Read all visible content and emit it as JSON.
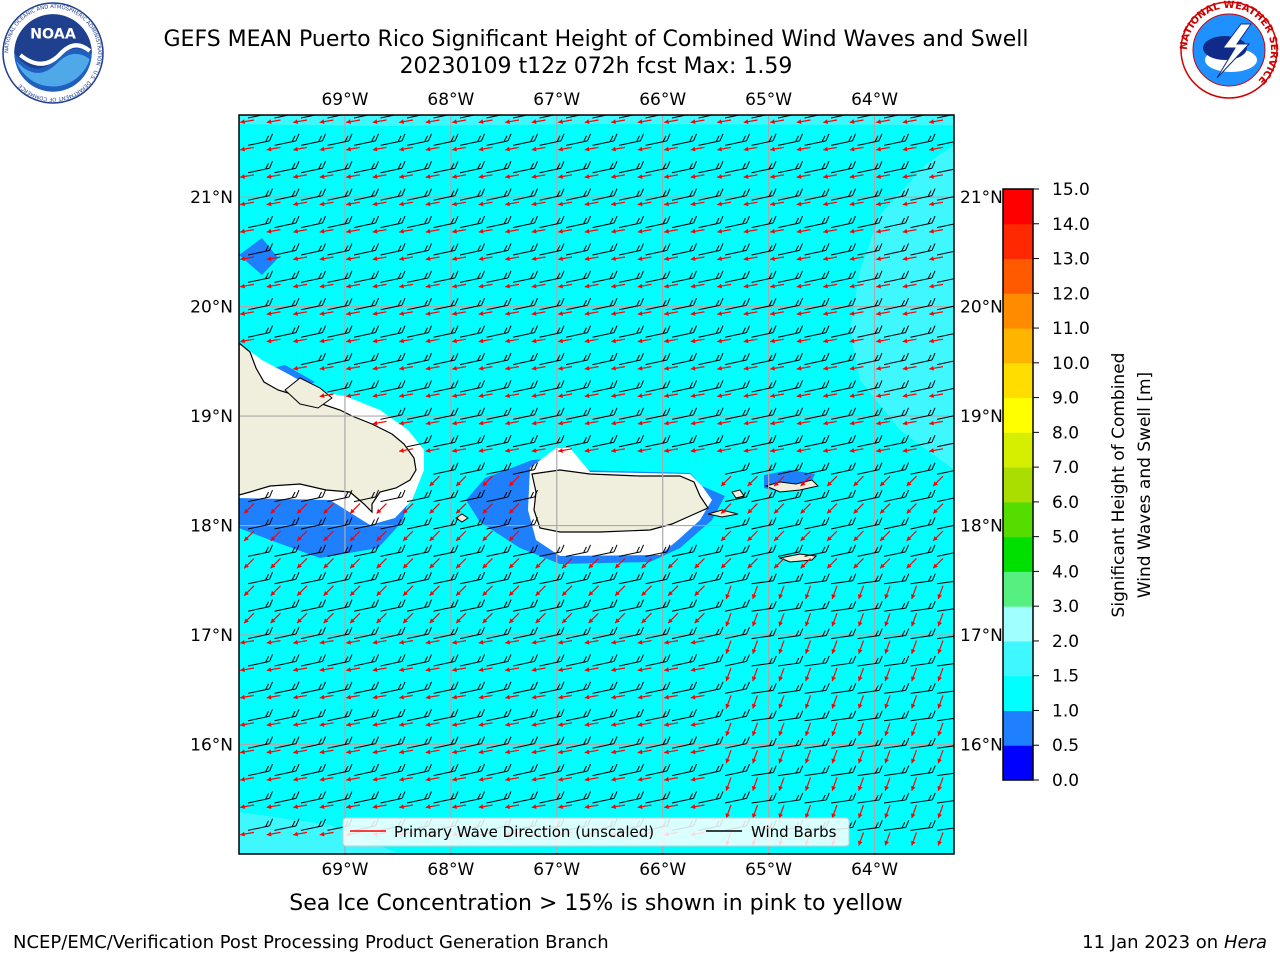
{
  "header": {
    "title_line1": "GEFS MEAN Puerto Rico Significant Height of Combined Wind Waves and Swell",
    "title_line2": "20230109 t12z 072h fcst   Max: 1.59"
  },
  "logos": {
    "left": {
      "name": "noaa-logo",
      "text": "NOAA",
      "ring_text": "NATIONAL OCEANIC AND ATMOSPHERIC ADMINISTRATION · U.S. DEPARTMENT OF COMMERCE"
    },
    "right": {
      "name": "nws-logo",
      "ring_text": "NATIONAL WEATHER SERVICE"
    }
  },
  "map": {
    "lon_ticks": [
      "69°W",
      "68°W",
      "67°W",
      "66°W",
      "65°W",
      "64°W"
    ],
    "lat_ticks": [
      "21°N",
      "20°N",
      "19°N",
      "18°N",
      "17°N",
      "16°N"
    ],
    "lon_values": [
      -69,
      -68,
      -67,
      -66,
      -65,
      -64
    ],
    "lat_values": [
      21,
      20,
      19,
      18,
      17,
      16
    ],
    "lon_range": [
      -70,
      -63.25
    ],
    "lat_range": [
      15.0,
      21.75
    ],
    "grid": true,
    "colors": {
      "ocean": "#00ffff",
      "swell_15_20": "#3ff8ff",
      "swell_05_10": "#1e7fff",
      "land": "#f0eedc",
      "white_zone": "#ffffff",
      "wave_arrow": "#ff0000",
      "wind_barb": "#000000"
    }
  },
  "legend": {
    "wave_direction": "Primary Wave Direction (unscaled)",
    "wind_barbs": "Wind Barbs",
    "placement": "lower-center"
  },
  "colorbar": {
    "label_line1": "Significant Height of Combined",
    "label_line2": "Wind Waves and Swell [m]",
    "tick_labels": [
      "0.0",
      "0.5",
      "1.0",
      "1.5",
      "2.0",
      "3.0",
      "4.0",
      "5.0",
      "6.0",
      "7.0",
      "8.0",
      "9.0",
      "10.0",
      "11.0",
      "12.0",
      "13.0",
      "14.0",
      "15.0"
    ],
    "colors": [
      "#0000ff",
      "#1e7fff",
      "#00ffff",
      "#3ff8ff",
      "#a0ffff",
      "#55f07f",
      "#00e000",
      "#55dd00",
      "#aadd00",
      "#d6ee00",
      "#ffff00",
      "#ffdd00",
      "#ffb400",
      "#ff8c00",
      "#ff5a00",
      "#ff2800",
      "#ff0000"
    ]
  },
  "ice_note": "Sea Ice Concentration > 15% is shown in pink to yellow",
  "footer": {
    "left": "NCEP/EMC/Verification Post Processing Product Generation Branch",
    "right_prefix": "11 Jan 2023 on ",
    "right_host": "Hera"
  }
}
